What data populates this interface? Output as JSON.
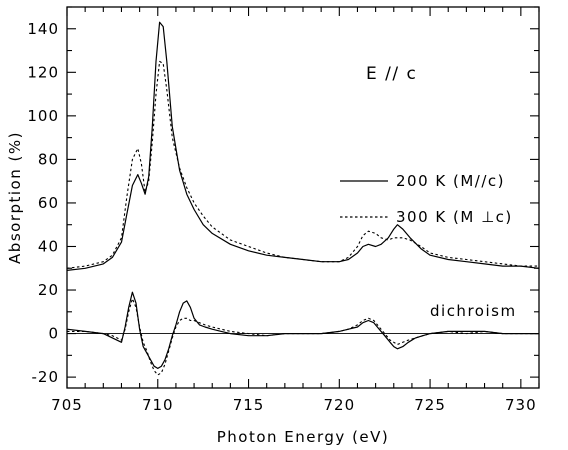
{
  "chart_data": {
    "type": "line",
    "xlabel": "Photon Energy (eV)",
    "ylabel": "Absorption (%)",
    "xlim": [
      705,
      731
    ],
    "ylim": [
      -25,
      150
    ],
    "xticks": [
      705,
      710,
      715,
      720,
      725,
      730
    ],
    "yticks": [
      -20,
      0,
      20,
      40,
      60,
      80,
      100,
      120,
      140
    ],
    "annotations": {
      "polarization": "E // c",
      "dichroism": "dichroism"
    },
    "legend": {
      "position": "right",
      "entries": [
        {
          "label": "200 K (M//c)",
          "style": "solid"
        },
        {
          "label": "300 K (M ⊥c)",
          "style": "dotted"
        }
      ]
    },
    "series": [
      {
        "name": "200 K (M//c)",
        "style": "solid",
        "x": [
          705,
          706,
          707,
          707.5,
          708,
          708.3,
          708.6,
          708.9,
          709.1,
          709.3,
          709.5,
          709.7,
          709.9,
          710.1,
          710.3,
          710.5,
          710.8,
          711.2,
          711.6,
          712,
          712.5,
          713,
          714,
          715,
          716,
          717,
          718,
          719,
          720,
          720.5,
          721,
          721.3,
          721.6,
          722,
          722.3,
          722.7,
          723,
          723.2,
          723.5,
          723.9,
          724.5,
          725,
          726,
          727,
          728,
          729,
          730,
          731
        ],
        "y": [
          29,
          30,
          32,
          35,
          42,
          55,
          68,
          73,
          69,
          64,
          72,
          95,
          125,
          143,
          141,
          125,
          95,
          75,
          64,
          57,
          50,
          46,
          41,
          38,
          36,
          35,
          34,
          33,
          33,
          34,
          37,
          40,
          41,
          40,
          41,
          44,
          48,
          50,
          48,
          44,
          39,
          36,
          34,
          33,
          32,
          31,
          31,
          30
        ]
      },
      {
        "name": "300 K (M ⊥c)",
        "style": "dotted",
        "x": [
          705,
          706,
          707,
          707.5,
          708,
          708.3,
          708.6,
          708.9,
          709.1,
          709.3,
          709.5,
          709.7,
          709.9,
          710.1,
          710.3,
          710.5,
          710.8,
          711.2,
          711.6,
          712,
          712.5,
          713,
          714,
          715,
          716,
          717,
          718,
          719,
          720,
          720.5,
          721,
          721.3,
          721.6,
          722,
          722.3,
          722.7,
          723,
          723.2,
          723.5,
          723.9,
          724.5,
          725,
          726,
          727,
          728,
          729,
          730,
          731
        ],
        "y": [
          30,
          31,
          33,
          36,
          44,
          63,
          80,
          85,
          78,
          65,
          70,
          88,
          110,
          125,
          124,
          112,
          90,
          76,
          67,
          60,
          54,
          49,
          43,
          40,
          37,
          35,
          34,
          33,
          33,
          35,
          40,
          45,
          47,
          46,
          44,
          43,
          44,
          44,
          44,
          43,
          40,
          37,
          35,
          34,
          33,
          32,
          31,
          31
        ]
      },
      {
        "name": "dichroism (solid)",
        "style": "solid",
        "x": [
          705,
          706,
          707,
          707.5,
          708,
          708.2,
          708.4,
          708.6,
          708.8,
          709,
          709.2,
          709.4,
          709.6,
          709.8,
          710,
          710.2,
          710.4,
          710.6,
          710.8,
          711,
          711.2,
          711.4,
          711.6,
          711.8,
          712,
          712.3,
          712.6,
          713,
          713.5,
          714,
          715,
          716,
          717,
          718,
          719,
          720,
          720.5,
          721,
          721.3,
          721.6,
          721.9,
          722.2,
          722.5,
          722.8,
          723,
          723.2,
          723.5,
          723.8,
          724.2,
          724.6,
          725,
          726,
          727,
          728,
          729,
          730,
          731
        ],
        "y": [
          2,
          1,
          0,
          -2,
          -4,
          3,
          12,
          19,
          14,
          2,
          -6,
          -9,
          -12,
          -15,
          -16,
          -15,
          -12,
          -7,
          -1,
          4,
          10,
          14,
          15,
          12,
          7,
          4,
          3,
          2,
          1,
          0,
          -1,
          -1,
          0,
          0,
          0,
          1,
          2,
          3,
          5,
          6,
          5,
          2,
          -1,
          -4,
          -6,
          -7,
          -6,
          -4,
          -2,
          -1,
          0,
          1,
          1,
          1,
          0,
          0,
          0
        ]
      },
      {
        "name": "dichroism (dotted)",
        "style": "dotted",
        "x": [
          705,
          706,
          707,
          707.5,
          708,
          708.2,
          708.4,
          708.6,
          708.8,
          709,
          709.2,
          709.4,
          709.6,
          709.8,
          710,
          710.2,
          710.4,
          710.6,
          710.8,
          711,
          711.2,
          711.4,
          711.6,
          711.8,
          712,
          712.3,
          712.6,
          713,
          713.5,
          714,
          715,
          716,
          717,
          718,
          719,
          720,
          720.5,
          721,
          721.3,
          721.6,
          721.9,
          722.2,
          722.5,
          722.8,
          723,
          723.2,
          723.5,
          723.8,
          724.2,
          724.6,
          725,
          726,
          727,
          728,
          729,
          730,
          731
        ],
        "y": [
          1,
          1,
          0,
          -1,
          -3,
          2,
          10,
          16,
          12,
          3,
          -4,
          -8,
          -13,
          -17,
          -19,
          -18,
          -14,
          -8,
          -2,
          3,
          6,
          7,
          7,
          6,
          6,
          5,
          4,
          3,
          2,
          1,
          0,
          -1,
          0,
          0,
          0,
          1,
          2,
          4,
          6,
          7,
          6,
          3,
          0,
          -3,
          -4,
          -5,
          -4,
          -3,
          -2,
          -1,
          0,
          1,
          0,
          1,
          0,
          0,
          0
        ]
      }
    ]
  }
}
